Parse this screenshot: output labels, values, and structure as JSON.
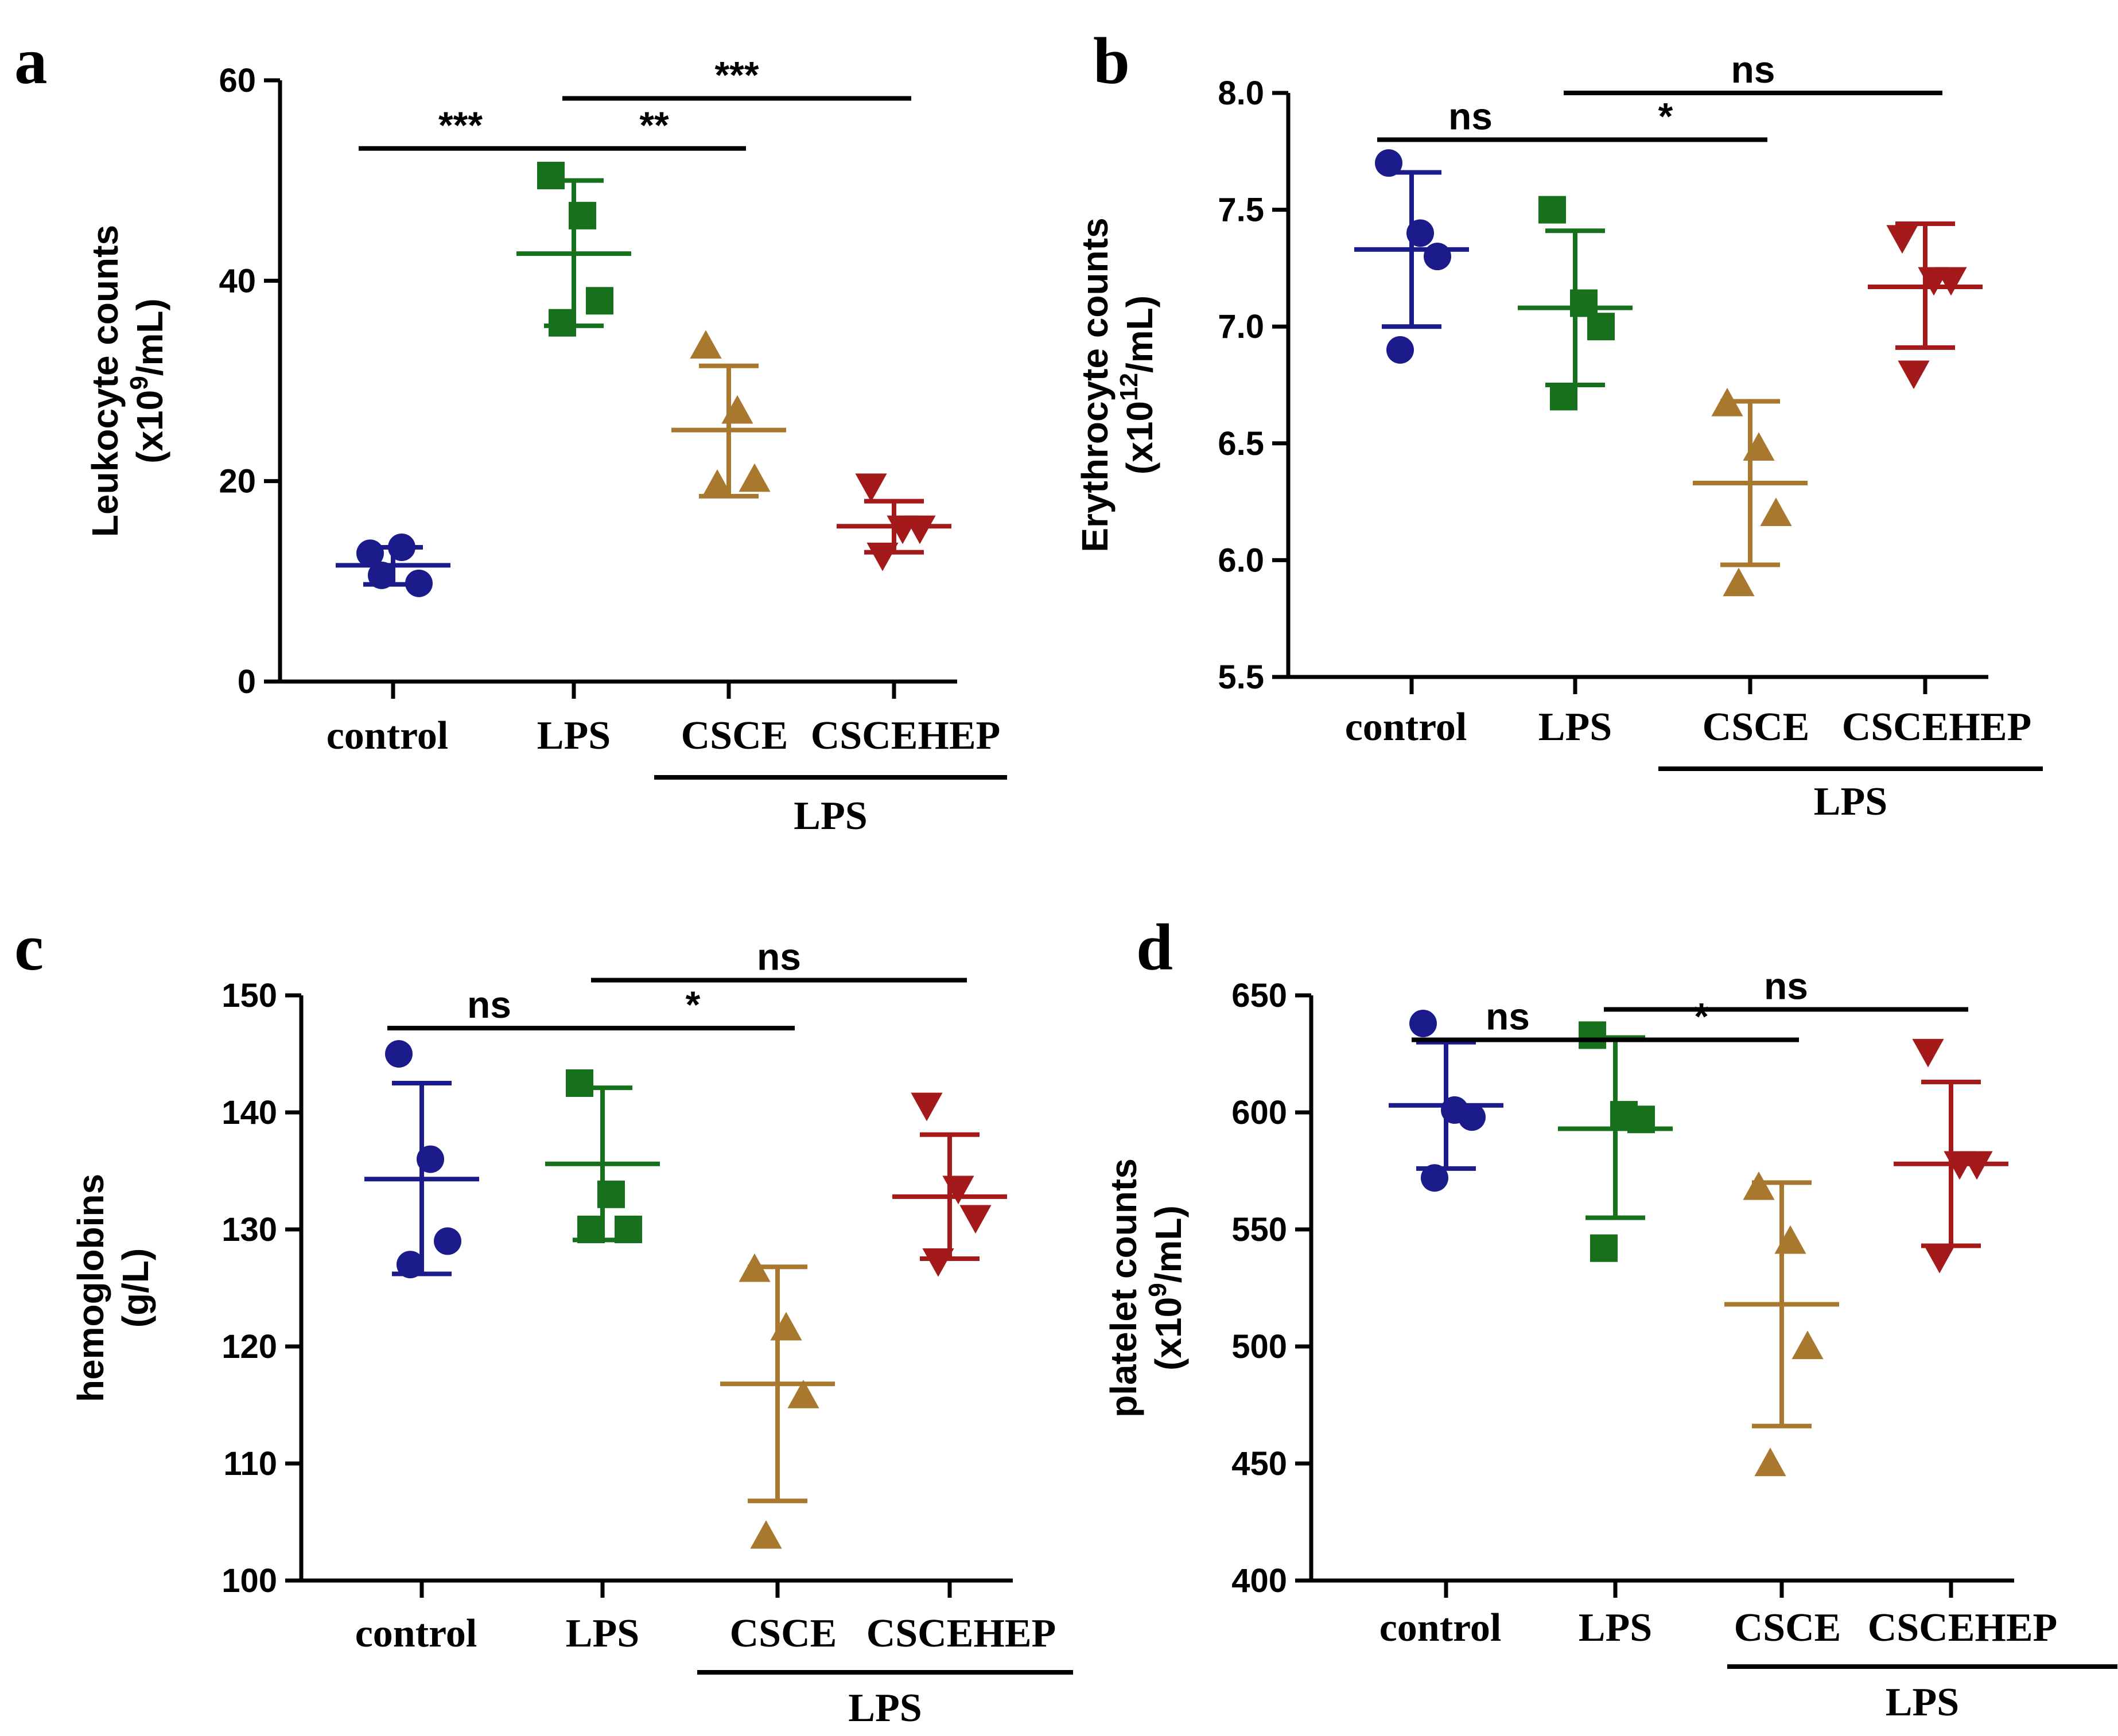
{
  "colors": {
    "control": "#1b1b8c",
    "LPS": "#17701c",
    "CSCE": "#a8782f",
    "CSCEHEP": "#a41a1a"
  },
  "chart_data": [
    {
      "id": "a",
      "panel_letter": "a",
      "type": "scatter",
      "ylabel_line1": "Leukocyte counts",
      "ylabel_line2": "(x10",
      "ylabel_sup": "9",
      "ylabel_line2_tail": "/mL)",
      "ylim": [
        0,
        60
      ],
      "yticks": [
        0,
        20,
        40,
        60
      ],
      "categories": [
        "control",
        "LPS",
        "CSCE",
        "CSCEHEP"
      ],
      "group_label": "LPS",
      "series": [
        {
          "name": "control",
          "marker": "circle",
          "values": [
            12.8,
            13.4,
            9.8,
            10.6
          ],
          "mean": 11.6,
          "sd_low": 9.7,
          "sd_high": 13.4
        },
        {
          "name": "LPS",
          "marker": "square",
          "values": [
            50.5,
            46.5,
            38,
            35.8
          ],
          "mean": 42.7,
          "sd_low": 35.5,
          "sd_high": 50
        },
        {
          "name": "CSCE",
          "marker": "triangle-up",
          "values": [
            33.5,
            27,
            20.2,
            19.6
          ],
          "mean": 25.1,
          "sd_low": 18.5,
          "sd_high": 31.5
        },
        {
          "name": "CSCEHEP",
          "marker": "triangle-down",
          "values": [
            19.5,
            15.3,
            15.3,
            12.6
          ],
          "mean": 15.5,
          "sd_low": 12.9,
          "sd_high": 18
        }
      ],
      "comparisons": [
        {
          "from": 0,
          "to": 1,
          "label": "***",
          "y": 53.2
        },
        {
          "from": 1,
          "to": 2,
          "label": "**",
          "y": 53.2
        },
        {
          "from": 1,
          "to": 3,
          "label": "***",
          "y": 58.2
        }
      ]
    },
    {
      "id": "b",
      "panel_letter": "b",
      "type": "scatter",
      "ylabel_line1": "Erythrocyte counts",
      "ylabel_line2": "(x10",
      "ylabel_sup": "12",
      "ylabel_line2_tail": "/mL)",
      "ylim": [
        5.5,
        8.0
      ],
      "yticks": [
        5.5,
        6.0,
        6.5,
        7.0,
        7.5,
        8.0
      ],
      "categories": [
        "control",
        "LPS",
        "CSCE",
        "CSCEHEP"
      ],
      "group_label": "LPS",
      "series": [
        {
          "name": "control",
          "marker": "circle",
          "values": [
            7.7,
            7.4,
            7.3,
            6.9
          ],
          "mean": 7.33,
          "sd_low": 7.0,
          "sd_high": 7.66
        },
        {
          "name": "LPS",
          "marker": "square",
          "values": [
            7.5,
            7.1,
            7.0,
            6.7
          ],
          "mean": 7.08,
          "sd_low": 6.75,
          "sd_high": 7.41
        },
        {
          "name": "CSCE",
          "marker": "triangle-up",
          "values": [
            6.67,
            6.48,
            6.2,
            5.9
          ],
          "mean": 6.33,
          "sd_low": 5.98,
          "sd_high": 6.68
        },
        {
          "name": "CSCEHEP",
          "marker": "triangle-down",
          "values": [
            7.38,
            7.2,
            7.2,
            6.8
          ],
          "mean": 7.17,
          "sd_low": 6.91,
          "sd_high": 7.44
        }
      ],
      "comparisons": [
        {
          "from": 0,
          "to": 1,
          "label": "ns",
          "y": 7.8
        },
        {
          "from": 1,
          "to": 2,
          "label": "*",
          "y": 7.8
        },
        {
          "from": 1,
          "to": 3,
          "label": "ns",
          "y": 8.0
        }
      ]
    },
    {
      "id": "c",
      "panel_letter": "c",
      "type": "scatter",
      "ylabel_line1": "hemoglobins",
      "ylabel_line2": "(g/L)",
      "ylabel_sup": "",
      "ylabel_line2_tail": "",
      "ylim": [
        100,
        150
      ],
      "yticks": [
        100,
        110,
        120,
        130,
        140,
        150
      ],
      "categories": [
        "control",
        "LPS",
        "CSCE",
        "CSCEHEP"
      ],
      "group_label": "LPS",
      "series": [
        {
          "name": "control",
          "marker": "circle",
          "values": [
            145,
            136,
            129,
            127
          ],
          "mean": 134.3,
          "sd_low": 126.2,
          "sd_high": 142.5
        },
        {
          "name": "LPS",
          "marker": "square",
          "values": [
            142.5,
            133,
            130,
            130
          ],
          "mean": 135.6,
          "sd_low": 129.1,
          "sd_high": 142.1
        },
        {
          "name": "CSCE",
          "marker": "triangle-up",
          "values": [
            126.6,
            121.6,
            115.8,
            103.8
          ],
          "mean": 116.8,
          "sd_low": 106.8,
          "sd_high": 126.8
        },
        {
          "name": "CSCEHEP",
          "marker": "triangle-down",
          "values": [
            140.6,
            133.5,
            131,
            127.3
          ],
          "mean": 132.8,
          "sd_low": 127.5,
          "sd_high": 138.1
        }
      ],
      "comparisons": [
        {
          "from": 0,
          "to": 1,
          "label": "ns",
          "y": 147.2
        },
        {
          "from": 1,
          "to": 2,
          "label": "*",
          "y": 147.2
        },
        {
          "from": 1,
          "to": 3,
          "label": "ns",
          "y": 151.3
        }
      ]
    },
    {
      "id": "d",
      "panel_letter": "d",
      "type": "scatter",
      "ylabel_line1": "platelet counts",
      "ylabel_line2": "(x10",
      "ylabel_sup": "9",
      "ylabel_line2_tail": "/mL)",
      "ylim": [
        400,
        650
      ],
      "yticks": [
        400,
        450,
        500,
        550,
        600,
        650
      ],
      "categories": [
        "control",
        "LPS",
        "CSCE",
        "CSCEHEP"
      ],
      "group_label": "LPS",
      "series": [
        {
          "name": "control",
          "marker": "circle",
          "values": [
            638,
            601,
            598,
            572
          ],
          "mean": 603,
          "sd_low": 576,
          "sd_high": 630
        },
        {
          "name": "LPS",
          "marker": "square",
          "values": [
            633,
            599,
            597,
            542
          ],
          "mean": 593,
          "sd_low": 555,
          "sd_high": 632
        },
        {
          "name": "CSCE",
          "marker": "triangle-up",
          "values": [
            568,
            545,
            500,
            450
          ],
          "mean": 518,
          "sd_low": 466,
          "sd_high": 570
        },
        {
          "name": "CSCEHEP",
          "marker": "triangle-down",
          "values": [
            626,
            578,
            578,
            538
          ],
          "mean": 578,
          "sd_low": 543,
          "sd_high": 613
        }
      ],
      "comparisons": [
        {
          "from": 0,
          "to": 1,
          "label": "ns",
          "y": 631
        },
        {
          "from": 1,
          "to": 2,
          "label": "*",
          "y": 631
        },
        {
          "from": 1,
          "to": 3,
          "label": "ns",
          "y": 644
        }
      ]
    }
  ]
}
